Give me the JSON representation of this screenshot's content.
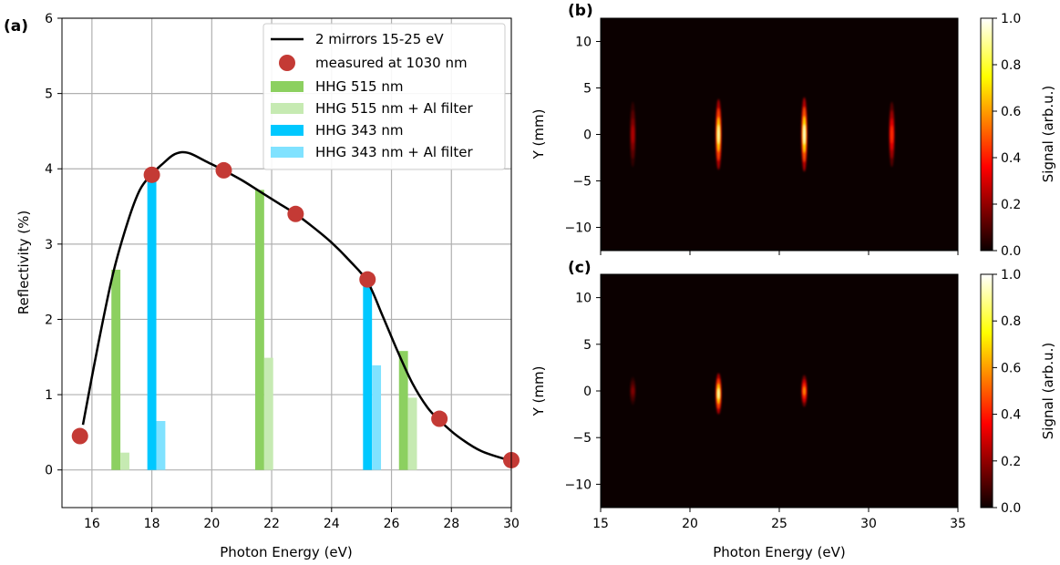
{
  "chart_data": [
    {
      "panel": "(a)",
      "type": "bar",
      "xlabel": "Photon Energy (eV)",
      "ylabel": "Reflectivity (%)",
      "xlim": [
        15,
        30
      ],
      "ylim": [
        -0.5,
        6
      ],
      "xticks": [
        16,
        18,
        20,
        22,
        24,
        26,
        28,
        30
      ],
      "yticks": [
        0,
        1,
        2,
        3,
        4,
        5,
        6
      ],
      "grid": true,
      "legend_position": "top-right",
      "colors": {
        "curve": "#000000",
        "measured": "#c43a35",
        "hhg515": "#8cd060",
        "hhg515_al": "#c6eab2",
        "hhg343": "#00c8ff",
        "hhg343_al": "#80e2ff"
      },
      "series": [
        {
          "name": "2 mirrors 15-25 eV",
          "kind": "line",
          "x": [
            15.7,
            16.2,
            16.7,
            17.2,
            17.6,
            18.0,
            18.4,
            18.7,
            19.0,
            19.3,
            19.8,
            20.4,
            21.0,
            21.6,
            22.2,
            22.8,
            23.4,
            24.0,
            24.6,
            25.2,
            25.7,
            26.2,
            26.7,
            27.2,
            27.6,
            28.2,
            29.0,
            30.0
          ],
          "y": [
            0.6,
            1.65,
            2.6,
            3.3,
            3.72,
            3.93,
            4.08,
            4.18,
            4.22,
            4.2,
            4.1,
            3.98,
            3.85,
            3.7,
            3.55,
            3.4,
            3.22,
            3.02,
            2.78,
            2.5,
            2.05,
            1.58,
            1.15,
            0.83,
            0.66,
            0.45,
            0.25,
            0.12
          ]
        },
        {
          "name": "measured at 1030 nm",
          "kind": "scatter",
          "x": [
            15.6,
            18.0,
            20.4,
            22.8,
            25.2,
            27.6,
            30.0
          ],
          "y": [
            0.45,
            3.92,
            3.98,
            3.4,
            2.53,
            0.68,
            0.13
          ]
        },
        {
          "name": "HHG 515 nm",
          "kind": "bar",
          "x": [
            16.8,
            21.6,
            26.4
          ],
          "y": [
            2.66,
            3.72,
            1.58
          ]
        },
        {
          "name": "HHG 515 nm + Al filter",
          "kind": "bar",
          "x": [
            16.8,
            21.6,
            26.4
          ],
          "y": [
            0.23,
            1.49,
            0.96
          ]
        },
        {
          "name": "HHG 343 nm",
          "kind": "bar",
          "x": [
            18.0,
            25.2
          ],
          "y": [
            3.85,
            2.5
          ]
        },
        {
          "name": "HHG 343 nm + Al filter",
          "kind": "bar",
          "x": [
            18.0,
            25.2
          ],
          "y": [
            0.65,
            1.39
          ]
        }
      ]
    },
    {
      "panel": "(b)",
      "type": "heatmap",
      "xlabel": "",
      "ylabel": "Y (mm)",
      "xlim": [
        15,
        35
      ],
      "ylim": [
        -12.5,
        12.5
      ],
      "xticks": [
        15,
        20,
        25,
        30,
        35
      ],
      "yticks": [
        -10,
        -5,
        0,
        5,
        10
      ],
      "colorbar": {
        "label": "Signal (arb.u.)",
        "range": [
          0,
          1
        ],
        "ticks": [
          "0.0",
          "0.2",
          "0.4",
          "0.6",
          "0.8",
          "1.0"
        ]
      },
      "spots": [
        {
          "x": 16.8,
          "y": 0.0,
          "peak": 0.25,
          "y_halfwidth": 3.5
        },
        {
          "x": 21.6,
          "y": 0.0,
          "peak": 0.95,
          "y_halfwidth": 3.8
        },
        {
          "x": 26.4,
          "y": 0.0,
          "peak": 1.0,
          "y_halfwidth": 4.0
        },
        {
          "x": 31.3,
          "y": 0.0,
          "peak": 0.45,
          "y_halfwidth": 3.5
        }
      ]
    },
    {
      "panel": "(c)",
      "type": "heatmap",
      "xlabel": "Photon Energy (eV)",
      "ylabel": "Y (mm)",
      "xlim": [
        15,
        35
      ],
      "ylim": [
        -12.5,
        12.5
      ],
      "xticks": [
        15,
        20,
        25,
        30,
        35
      ],
      "yticks": [
        -10,
        -5,
        0,
        5,
        10
      ],
      "colorbar": {
        "label": "Signal (arb.u.)",
        "range": [
          0,
          1
        ],
        "ticks": [
          "0.0",
          "0.2",
          "0.4",
          "0.6",
          "0.8",
          "1.0"
        ]
      },
      "spots": [
        {
          "x": 16.8,
          "y": 0.0,
          "peak": 0.18,
          "y_halfwidth": 1.5
        },
        {
          "x": 21.6,
          "y": -0.3,
          "peak": 0.95,
          "y_halfwidth": 2.2
        },
        {
          "x": 26.4,
          "y": 0.0,
          "peak": 0.6,
          "y_halfwidth": 1.7
        }
      ]
    }
  ]
}
